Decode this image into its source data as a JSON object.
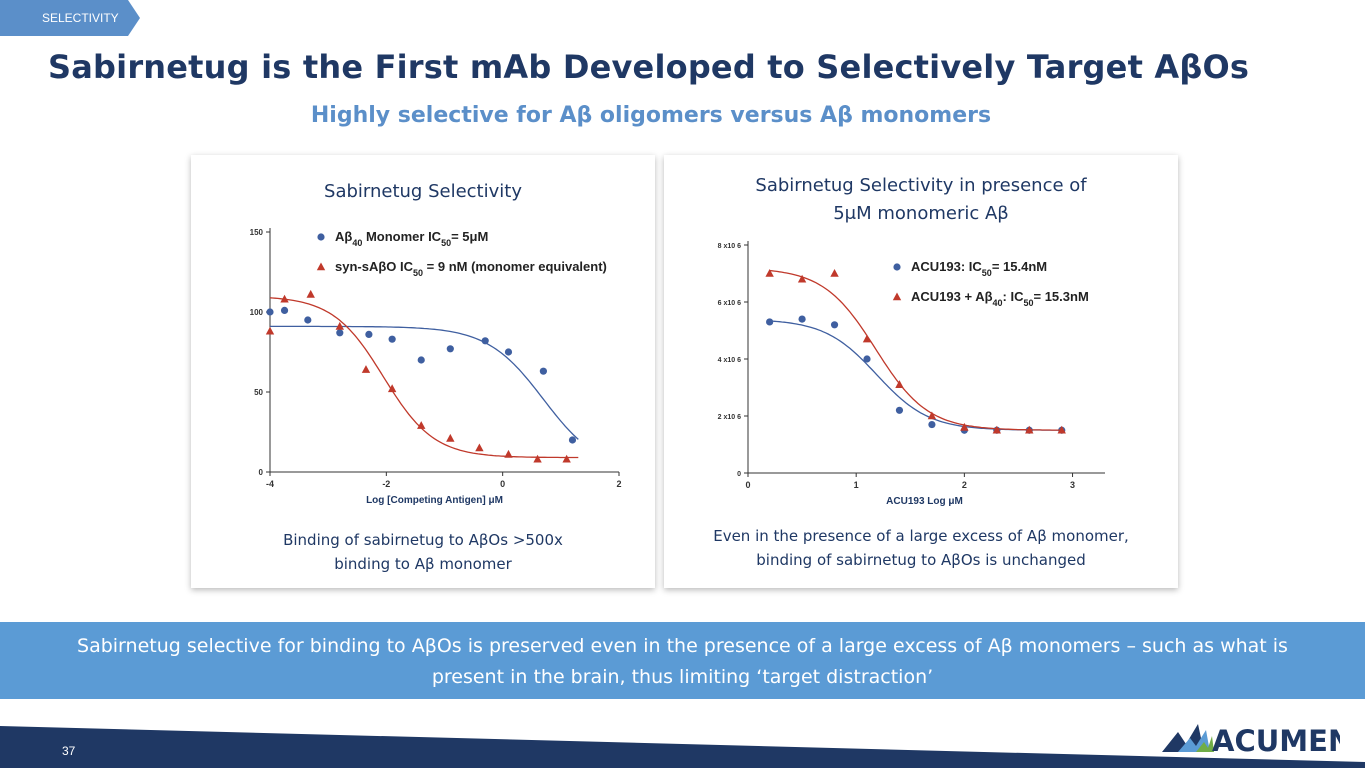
{
  "header": {
    "tag": "SELECTIVITY",
    "title": "Sabirnetug is the First mAb Developed to Selectively Target AβOs",
    "subtitle": "Highly selective for Aβ oligomers versus Aβ monomers"
  },
  "panel1": {
    "title": "Sabirnetug Selectivity",
    "caption_line1": "Binding of sabirnetug to AβOs >500x",
    "caption_line2": "binding to Aβ monomer"
  },
  "panel2": {
    "title_line1": "Sabirnetug Selectivity in presence of",
    "title_line2": "5μM monomeric Aβ",
    "caption_line1": "Even in the presence of a large excess of Aβ monomer,",
    "caption_line2": "binding of sabirnetug to AβOs is unchanged"
  },
  "banner": {
    "line1": "Sabirnetug selective for binding to AβOs is preserved even in the presence of a large excess of Aβ monomers – such as what is",
    "line2": "present in the brain, thus limiting ‘target distraction’"
  },
  "footer": {
    "page_number": "37",
    "logo_text": "ACUMEN"
  },
  "colors": {
    "navy": "#1f3864",
    "accent": "#5b9bd5",
    "blue_series": "#3f5fa0",
    "red_series": "#c0392b"
  },
  "chart_data": [
    {
      "type": "scatter",
      "title": "Sabirnetug Selectivity",
      "xlabel": "Log [Competing Antigen] μM",
      "ylabel": "",
      "xlim": [
        -4,
        2
      ],
      "ylim": [
        0,
        150
      ],
      "x_ticks": [
        -4,
        -2,
        0,
        2
      ],
      "x_tick_labels": [
        "-4",
        "-2",
        "0",
        "2"
      ],
      "y_ticks": [
        0,
        50,
        100,
        150
      ],
      "y_tick_labels": [
        "0",
        "50",
        "100",
        "150"
      ],
      "legend_position": "top",
      "series": [
        {
          "name": "Aβ40 Monomer IC50= 5μM",
          "legend_parts": [
            "Aβ",
            "40",
            " Monomer IC",
            "50",
            "= 5μM"
          ],
          "marker": "circle",
          "color": "#3f5fa0",
          "x": [
            -4.0,
            -3.75,
            -3.35,
            -2.8,
            -2.3,
            -1.9,
            -1.4,
            -0.9,
            -0.3,
            0.1,
            0.7,
            1.2
          ],
          "y": [
            100,
            101,
            95,
            87,
            86,
            83,
            70,
            77,
            82,
            75,
            63,
            20
          ],
          "fit": {
            "top": 91,
            "bottom": 0,
            "logIC50": 0.7,
            "hill": 0.9
          }
        },
        {
          "name": "syn-sAβO IC50 = 9 nM (monomer equivalent)",
          "legend_parts": [
            "syn-sAβO IC",
            "50",
            " = 9 nM (monomer equivalent)"
          ],
          "marker": "triangle",
          "color": "#c0392b",
          "x": [
            -4.0,
            -3.75,
            -3.3,
            -2.8,
            -2.35,
            -1.9,
            -1.4,
            -0.9,
            -0.4,
            0.1,
            0.6,
            1.1
          ],
          "y": [
            88,
            108,
            111,
            91,
            64,
            52,
            29,
            21,
            15,
            11,
            8,
            8
          ],
          "fit": {
            "top": 110,
            "bottom": 9,
            "logIC50": -2.05,
            "hill": 1.0
          }
        }
      ]
    },
    {
      "type": "scatter",
      "title": "Sabirnetug Selectivity in presence of 5μM monomeric Aβ",
      "xlabel": "ACU193 Log μM",
      "ylabel": "",
      "xlim": [
        0,
        3.3
      ],
      "ylim": [
        0,
        8000000
      ],
      "x_ticks": [
        0,
        1,
        2,
        3
      ],
      "x_tick_labels": [
        "0",
        "1",
        "2",
        "3"
      ],
      "y_ticks": [
        0,
        2000000,
        4000000,
        6000000,
        8000000
      ],
      "y_tick_labels": [
        "0",
        "2 x10 6",
        "4 x10 6",
        "6 x10 6",
        "8 x10 6"
      ],
      "legend_position": "top-right",
      "series": [
        {
          "name": "ACU193: IC50= 15.4nM",
          "legend_parts": [
            "ACU193: IC",
            "50",
            "= 15.4nM"
          ],
          "marker": "circle",
          "color": "#3f5fa0",
          "x": [
            0.2,
            0.5,
            0.8,
            1.1,
            1.4,
            1.7,
            2.0,
            2.3,
            2.6,
            2.9
          ],
          "y": [
            5300000,
            5400000,
            5200000,
            4000000,
            2200000,
            1700000,
            1500000,
            1500000,
            1500000,
            1500000
          ],
          "fit": {
            "top": 5400000,
            "bottom": 1500000,
            "logIC50": 1.19,
            "hill": 1.8
          }
        },
        {
          "name": "ACU193 + Aβ40: IC50= 15.3nM",
          "legend_parts": [
            "ACU193 + Aβ",
            "40",
            ": IC",
            "50",
            "= 15.3nM"
          ],
          "marker": "triangle",
          "color": "#c0392b",
          "x": [
            0.2,
            0.5,
            0.8,
            1.1,
            1.4,
            1.7,
            2.0,
            2.3,
            2.6,
            2.9
          ],
          "y": [
            7000000,
            6800000,
            7000000,
            4700000,
            3100000,
            2000000,
            1600000,
            1500000,
            1500000,
            1500000
          ],
          "fit": {
            "top": 7200000,
            "bottom": 1500000,
            "logIC50": 1.18,
            "hill": 1.8
          }
        }
      ]
    }
  ]
}
